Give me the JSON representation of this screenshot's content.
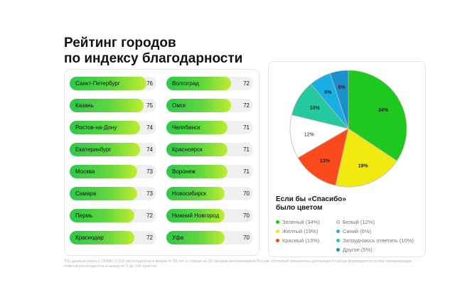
{
  "title": {
    "line1": "Рейтинг городов",
    "line2": "по индексу благодарности"
  },
  "rating": {
    "max": 76,
    "left": [
      {
        "city": "Санкт-Петербург",
        "score": 76
      },
      {
        "city": "Казань",
        "score": 75
      },
      {
        "city": "Ростов-на-Дону",
        "score": 74
      },
      {
        "city": "Екатеринбург",
        "score": 74
      },
      {
        "city": "Москва",
        "score": 73
      },
      {
        "city": "Самара",
        "score": 73
      },
      {
        "city": "Пермь",
        "score": 72
      },
      {
        "city": "Краснодар",
        "score": 72
      }
    ],
    "right": [
      {
        "city": "Волгоград",
        "score": 72
      },
      {
        "city": "Омск",
        "score": 72
      },
      {
        "city": "Челябинск",
        "score": 71
      },
      {
        "city": "Красноярск",
        "score": 71
      },
      {
        "city": "Воронеж",
        "score": 71
      },
      {
        "city": "Новосибирск",
        "score": 70
      },
      {
        "city": "Нижний Новгород",
        "score": 70
      },
      {
        "city": "Уфа",
        "score": 70
      }
    ]
  },
  "chart_data": {
    "type": "pie",
    "title_line1": "Если бы «Спасибо»",
    "title_line2": "было цветом",
    "slices": [
      {
        "name": "Зеленый",
        "value": 34,
        "label": "34%",
        "color": "#1fc81e",
        "legend": "Зеленый (34%)"
      },
      {
        "name": "Желтый",
        "value": 19,
        "label": "19%",
        "color": "#f2ea0e",
        "legend": "Желтый (19%)"
      },
      {
        "name": "Красный",
        "value": 13,
        "label": "13%",
        "color": "#fb4a1b",
        "legend": "Красный (13%)"
      },
      {
        "name": "Белый",
        "value": 12,
        "label": "12%",
        "color": "#ffffff",
        "legend": "Белый (12%)"
      },
      {
        "name": "Затрудняюсь ответить",
        "value": 10,
        "label": "10%",
        "color": "#24c9a0",
        "legend": "Затрудняюсь ответить (10%)"
      },
      {
        "name": "Синий",
        "value": 6,
        "label": "6%",
        "color": "#18b0e4",
        "legend": "Синий (6%)"
      },
      {
        "name": "Другое",
        "value": 5,
        "label": "5%",
        "color": "#1a8fce",
        "legend": "Другое (5%)"
      }
    ]
  },
  "footnote": "*По данным опроса СКАВС 3 516 респондентов в возрасте 18 лет и старше из 16 городов-миллионников России. Итоговый показатель для каждого города формируется путем нормализации ответов респондентов в шкалу от 0 до 100 пунктов."
}
